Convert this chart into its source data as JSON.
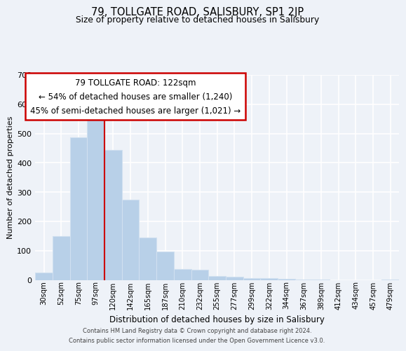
{
  "title1": "79, TOLLGATE ROAD, SALISBURY, SP1 2JP",
  "title2": "Size of property relative to detached houses in Salisbury",
  "xlabel": "Distribution of detached houses by size in Salisbury",
  "ylabel": "Number of detached properties",
  "bar_labels": [
    "30sqm",
    "52sqm",
    "75sqm",
    "97sqm",
    "120sqm",
    "142sqm",
    "165sqm",
    "187sqm",
    "210sqm",
    "232sqm",
    "255sqm",
    "277sqm",
    "299sqm",
    "322sqm",
    "344sqm",
    "367sqm",
    "389sqm",
    "412sqm",
    "434sqm",
    "457sqm",
    "479sqm"
  ],
  "bar_values": [
    25,
    150,
    487,
    558,
    443,
    273,
    145,
    98,
    36,
    35,
    13,
    10,
    7,
    5,
    3,
    2,
    1,
    0,
    0,
    0,
    2
  ],
  "bar_color": "#b8d0e8",
  "bar_edgecolor": "#d0e0f0",
  "vline_x_index": 3.5,
  "vline_color": "#cc0000",
  "annotation_title": "79 TOLLGATE ROAD: 122sqm",
  "annotation_line1": "← 54% of detached houses are smaller (1,240)",
  "annotation_line2": "45% of semi-detached houses are larger (1,021) →",
  "annotation_box_facecolor": "#ffffff",
  "annotation_box_edgecolor": "#cc0000",
  "ylim": [
    0,
    700
  ],
  "yticks": [
    0,
    100,
    200,
    300,
    400,
    500,
    600,
    700
  ],
  "footer1": "Contains HM Land Registry data © Crown copyright and database right 2024.",
  "footer2": "Contains public sector information licensed under the Open Government Licence v3.0.",
  "bg_color": "#eef2f8"
}
